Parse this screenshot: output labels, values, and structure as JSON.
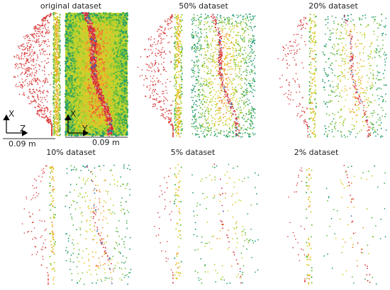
{
  "panels": [
    {
      "title": "original dataset"
    },
    {
      "title": "50% dataset"
    },
    {
      "title": "20% dataset"
    },
    {
      "title": "10% dataset"
    },
    {
      "title": "5% dataset"
    },
    {
      "title": "2% dataset"
    }
  ],
  "side_axes": {
    "vertical": "X",
    "horizontal": "Z"
  },
  "top_axes": {
    "vertical": "X",
    "horizontal": "Y"
  },
  "scale_bars": [
    "0.09 m",
    "0.09 m"
  ]
}
